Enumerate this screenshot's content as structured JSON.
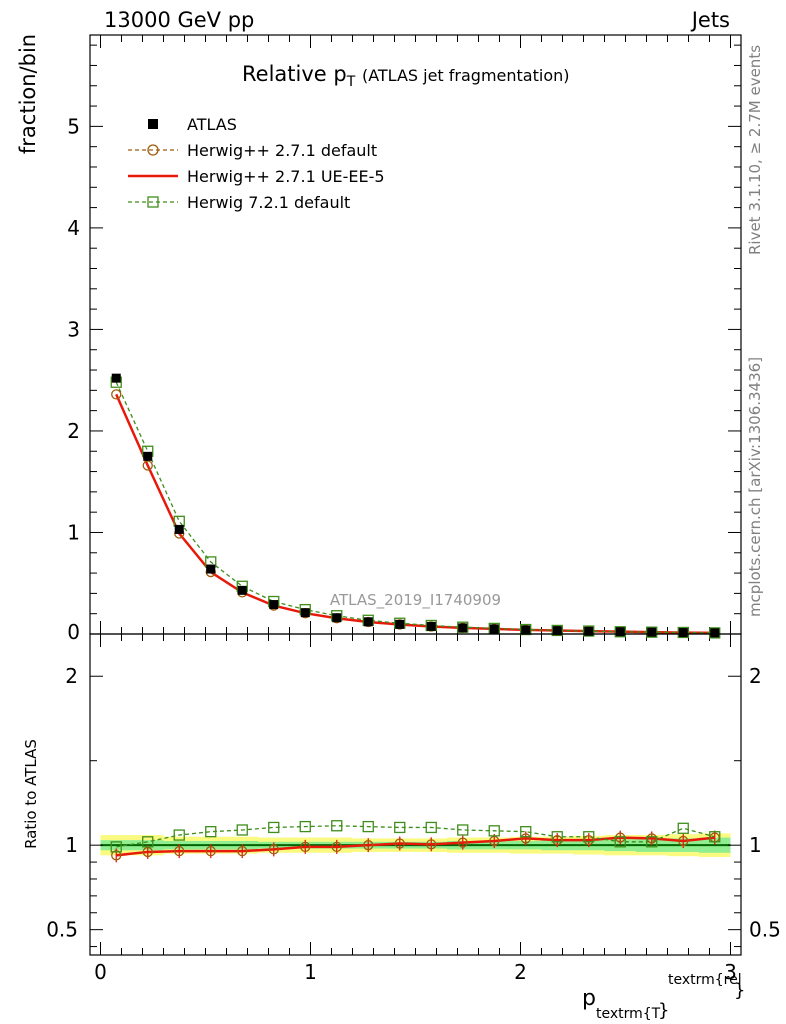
{
  "header": {
    "left": "13000 GeV pp",
    "right": "Jets"
  },
  "side": {
    "rivet": "Rivet 3.1.10, ≥ 2.7M events",
    "mcplots": "mcplots.cern.ch [arXiv:1306.3436]"
  },
  "chart_data": {
    "type": "line",
    "title_main": "Relative p",
    "title_sub": "T",
    "title_rest": "(ATLAS jet fragmentation)",
    "watermark": "ATLAS_2019_I1740909",
    "ylabel": "fraction/bin",
    "ratio_ylabel": "Ratio to ATLAS",
    "xlabel_main": "p",
    "xlabel_sub": "textrm{T",
    "xlabel_brace": "}",
    "xlabel_sup": "textrm{rel",
    "xlabel_sup_brace": "}",
    "xlim": [
      -0.05,
      3.05
    ],
    "ylim": [
      0,
      5.9
    ],
    "ratio_ylim": [
      0.35,
      2.25
    ],
    "x_ticks": [
      "0",
      "1",
      "2",
      "3"
    ],
    "y_ticks": [
      "0",
      "1",
      "2",
      "3",
      "4",
      "5"
    ],
    "ratio_ticks": [
      "0.5",
      "1",
      "2"
    ],
    "x": [
      0.075,
      0.225,
      0.375,
      0.525,
      0.675,
      0.825,
      0.975,
      1.125,
      1.275,
      1.425,
      1.575,
      1.725,
      1.875,
      2.025,
      2.175,
      2.325,
      2.475,
      2.625,
      2.775,
      2.925
    ],
    "series": [
      {
        "name": "ATLAS",
        "color": "#000000",
        "values": [
          2.52,
          1.75,
          1.03,
          0.64,
          0.43,
          0.29,
          0.21,
          0.16,
          0.12,
          0.095,
          0.075,
          0.06,
          0.05,
          0.04,
          0.033,
          0.027,
          0.022,
          0.018,
          0.014,
          0.011
        ]
      },
      {
        "name": "Herwig++ 2.7.1 default",
        "color": "#a05a0a",
        "values": [
          2.36,
          1.66,
          0.99,
          0.61,
          0.41,
          0.28,
          0.205,
          0.155,
          0.118,
          0.094,
          0.074,
          0.06,
          0.05,
          0.041,
          0.034,
          0.028,
          0.023,
          0.019,
          0.014,
          0.011
        ]
      },
      {
        "name": "Herwig++ 2.7.1 UE-EE-5",
        "color": "#e8190b",
        "values": [
          2.36,
          1.66,
          0.99,
          0.61,
          0.41,
          0.28,
          0.205,
          0.155,
          0.118,
          0.094,
          0.074,
          0.06,
          0.05,
          0.041,
          0.034,
          0.028,
          0.023,
          0.019,
          0.014,
          0.011
        ]
      },
      {
        "name": "Herwig 7.2.1 default",
        "color": "#3e8e1a",
        "values": [
          2.48,
          1.8,
          1.11,
          0.71,
          0.47,
          0.32,
          0.24,
          0.18,
          0.135,
          0.106,
          0.084,
          0.067,
          0.055,
          0.044,
          0.035,
          0.029,
          0.022,
          0.018,
          0.015,
          0.011
        ]
      }
    ],
    "ratios": [
      {
        "name": "Herwig++ 2.7.1 default",
        "values": [
          0.94,
          0.96,
          0.965,
          0.965,
          0.965,
          0.975,
          0.99,
          0.99,
          1.0,
          1.01,
          1.005,
          1.015,
          1.025,
          1.04,
          1.03,
          1.03,
          1.045,
          1.04,
          1.025,
          1.045
        ]
      },
      {
        "name": "Herwig++ 2.7.1 UE-EE-5",
        "values": [
          0.94,
          0.96,
          0.965,
          0.965,
          0.965,
          0.975,
          0.99,
          0.99,
          1.0,
          1.01,
          1.005,
          1.015,
          1.025,
          1.04,
          1.03,
          1.03,
          1.045,
          1.04,
          1.025,
          1.045
        ]
      },
      {
        "name": "Herwig 7.2.1 default",
        "values": [
          0.99,
          1.02,
          1.06,
          1.08,
          1.09,
          1.105,
          1.11,
          1.115,
          1.11,
          1.105,
          1.105,
          1.09,
          1.085,
          1.08,
          1.05,
          1.05,
          1.02,
          1.02,
          1.1,
          1.05
        ]
      }
    ],
    "band_total": [
      0.06,
      0.06,
      0.05,
      0.05,
      0.05,
      0.045,
      0.045,
      0.045,
      0.04,
      0.04,
      0.04,
      0.045,
      0.045,
      0.05,
      0.05,
      0.055,
      0.06,
      0.06,
      0.065,
      0.07
    ],
    "band_stat": [
      0.03,
      0.03,
      0.025,
      0.025,
      0.025,
      0.02,
      0.02,
      0.02,
      0.02,
      0.02,
      0.02,
      0.025,
      0.025,
      0.025,
      0.03,
      0.03,
      0.035,
      0.04,
      0.04,
      0.045
    ],
    "band_colors": {
      "total": "#fafa80",
      "stat": "#90ee90",
      "ref": "#006400"
    }
  }
}
